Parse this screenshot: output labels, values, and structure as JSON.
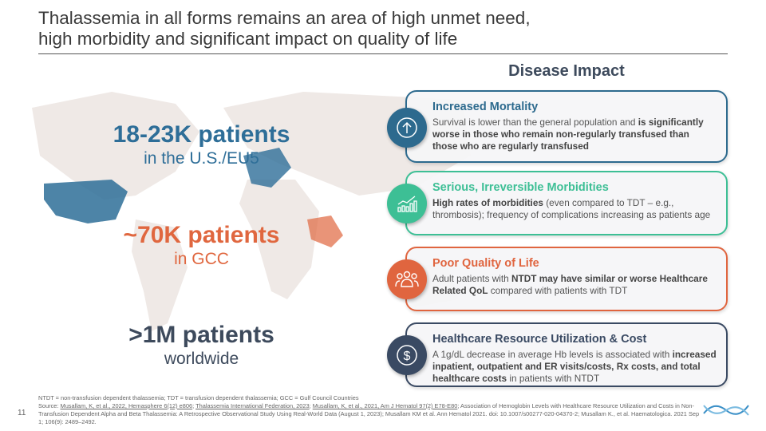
{
  "title": {
    "line1": "Thalassemia in all forms remains an area of high unmet need,",
    "line2": "high morbidity and significant impact on quality of life"
  },
  "stats": [
    {
      "value": "18-23K patients",
      "label": "in the U.S./EU5",
      "color": "#2e6e98"
    },
    {
      "value": "~70K patients",
      "label": "in GCC",
      "color": "#e0673f"
    },
    {
      "value": ">1M patients",
      "label": "worldwide",
      "color": "#3d4a5c"
    }
  ],
  "impact_heading": "Disease Impact",
  "cards": [
    {
      "title": "Increased Mortality",
      "icon": "arrow-up-circle-icon",
      "color": "#2d6a8e",
      "text": [
        {
          "t": "Survival is lower than the general population and ",
          "b": false
        },
        {
          "t": "is significantly worse in those who remain non-regularly transfused than those who are regularly transfused",
          "b": true
        }
      ]
    },
    {
      "title": "Serious, Irreversible Morbidities",
      "icon": "bar-chart-trend-icon",
      "color": "#3dbf95",
      "text": [
        {
          "t": "High rates of morbidities",
          "b": true
        },
        {
          "t": " (even compared to TDT – e.g., thrombosis); frequency of complications increasing as patients age",
          "b": false
        }
      ]
    },
    {
      "title": "Poor Quality of Life",
      "icon": "people-group-icon",
      "color": "#e0653f",
      "text": [
        {
          "t": "Adult patients with ",
          "b": false
        },
        {
          "t": "NTDT may have similar or worse Healthcare Related QoL",
          "b": true
        },
        {
          "t": " compared with patients with TDT",
          "b": false
        }
      ]
    },
    {
      "title": "Healthcare Resource Utilization & Cost",
      "icon": "dollar-circle-icon",
      "color": "#3a4a63",
      "text": [
        {
          "t": "A 1g/dL decrease in average Hb levels is associated with ",
          "b": false
        },
        {
          "t": "increased inpatient, outpatient and ER visits/costs, Rx costs, and total healthcare costs",
          "b": true
        },
        {
          "t": " in patients with NTDT",
          "b": false
        }
      ]
    }
  ],
  "footnote": {
    "abbrev": "NTDT = non-transfusion dependent thalassemia; TDT =  transfusion dependent thalassemia; GCC = Gulf Council Countries",
    "source_prefix": "Source: ",
    "links": [
      "Musallam, K, et al., 2022, Hemasphere 6(12) e806",
      "Thalassemia International Federation, 2023",
      "Musallam, K, et al., 2021, Am J Hematol 97(2) E78-E80"
    ],
    "rest": "; Association of Hemoglobin Levels with Healthcare Resource Utilization and Costs in Non-Transfusion Dependent Alpha and Beta Thalassemia: A Retrospective Observational Study Using Real-World Data (August 1, 2023); Musallam KM et al. Ann Hematol 2021. doi: 10.1007/s00277-020-04370-2; Musallam K., et al. Haematologica. 2021 Sep 1; 106(9): 2489–2492."
  },
  "page_number": "11"
}
